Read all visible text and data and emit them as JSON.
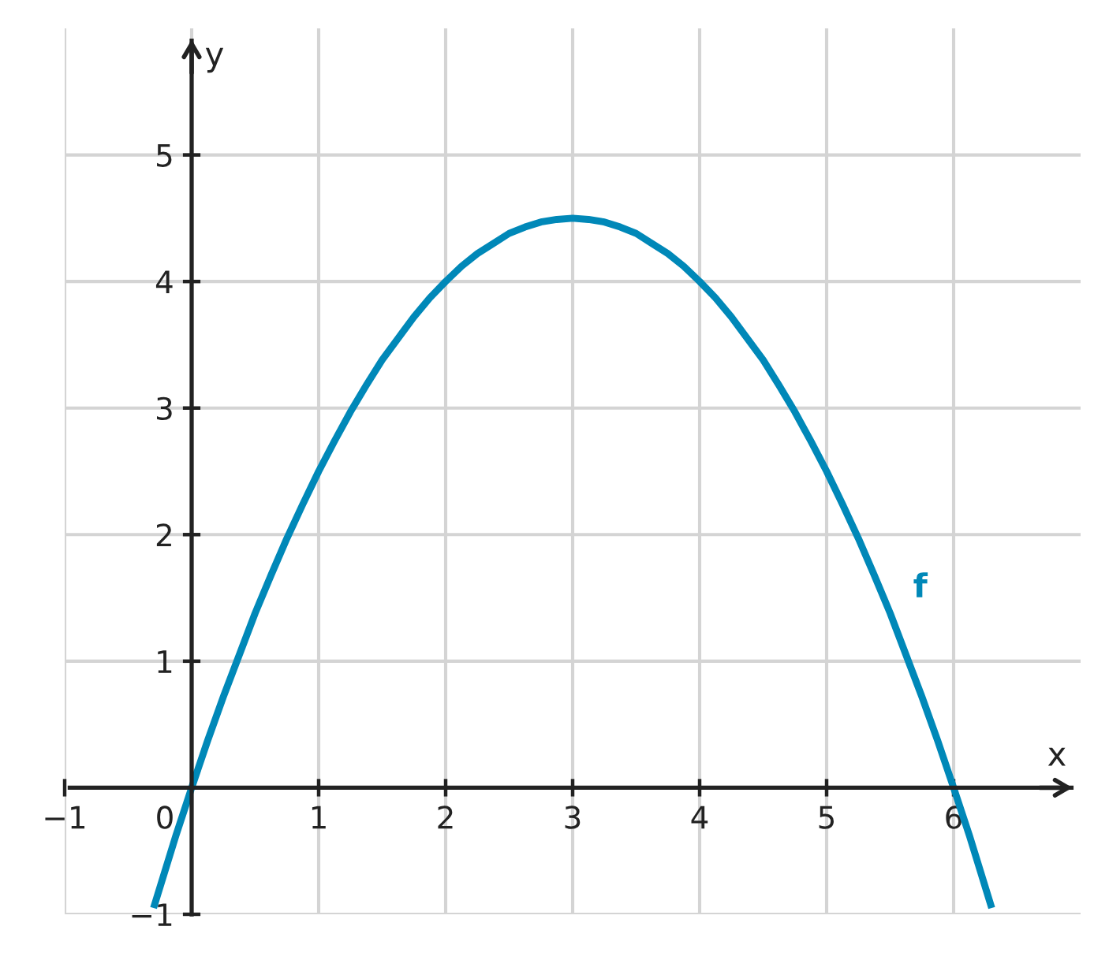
{
  "chart_data": {
    "type": "line",
    "xlabel": "x",
    "ylabel": "y",
    "series": [
      {
        "name": "f",
        "color": "#0088b8",
        "x": [
          -0.3,
          -0.125,
          0,
          0.125,
          0.25,
          0.375,
          0.5,
          0.625,
          0.75,
          0.875,
          1,
          1.125,
          1.25,
          1.375,
          1.5,
          1.625,
          1.75,
          1.875,
          2,
          2.125,
          2.25,
          2.375,
          2.5,
          2.625,
          2.75,
          2.875,
          3,
          3.125,
          3.25,
          3.375,
          3.5,
          3.625,
          3.75,
          3.875,
          4,
          4.125,
          4.25,
          4.375,
          4.5,
          4.625,
          4.75,
          4.875,
          5,
          5.125,
          5.25,
          5.375,
          5.5,
          5.625,
          5.75,
          5.875,
          6,
          6.125,
          6.3
        ],
        "values": [
          -0.95,
          -0.38,
          0,
          0.37,
          0.72,
          1.05,
          1.38,
          1.68,
          1.97,
          2.24,
          2.5,
          2.74,
          2.97,
          3.18,
          3.38,
          3.55,
          3.72,
          3.87,
          4,
          4.12,
          4.22,
          4.3,
          4.38,
          4.43,
          4.47,
          4.49,
          4.5,
          4.49,
          4.47,
          4.43,
          4.38,
          4.3,
          4.22,
          4.12,
          4,
          3.87,
          3.72,
          3.55,
          3.38,
          3.18,
          2.97,
          2.74,
          2.5,
          2.24,
          1.97,
          1.68,
          1.38,
          1.05,
          0.72,
          0.37,
          0,
          -0.38,
          -0.95
        ]
      }
    ],
    "xlim": [
      -1,
      7
    ],
    "ylim": [
      -1,
      6
    ],
    "xticks": [
      {
        "value": -1,
        "label": "−1"
      },
      0,
      1,
      2,
      3,
      4,
      5,
      6
    ],
    "yticks": [
      {
        "value": -1,
        "label": "−1"
      },
      1,
      2,
      3,
      4,
      5
    ],
    "grid": true
  }
}
